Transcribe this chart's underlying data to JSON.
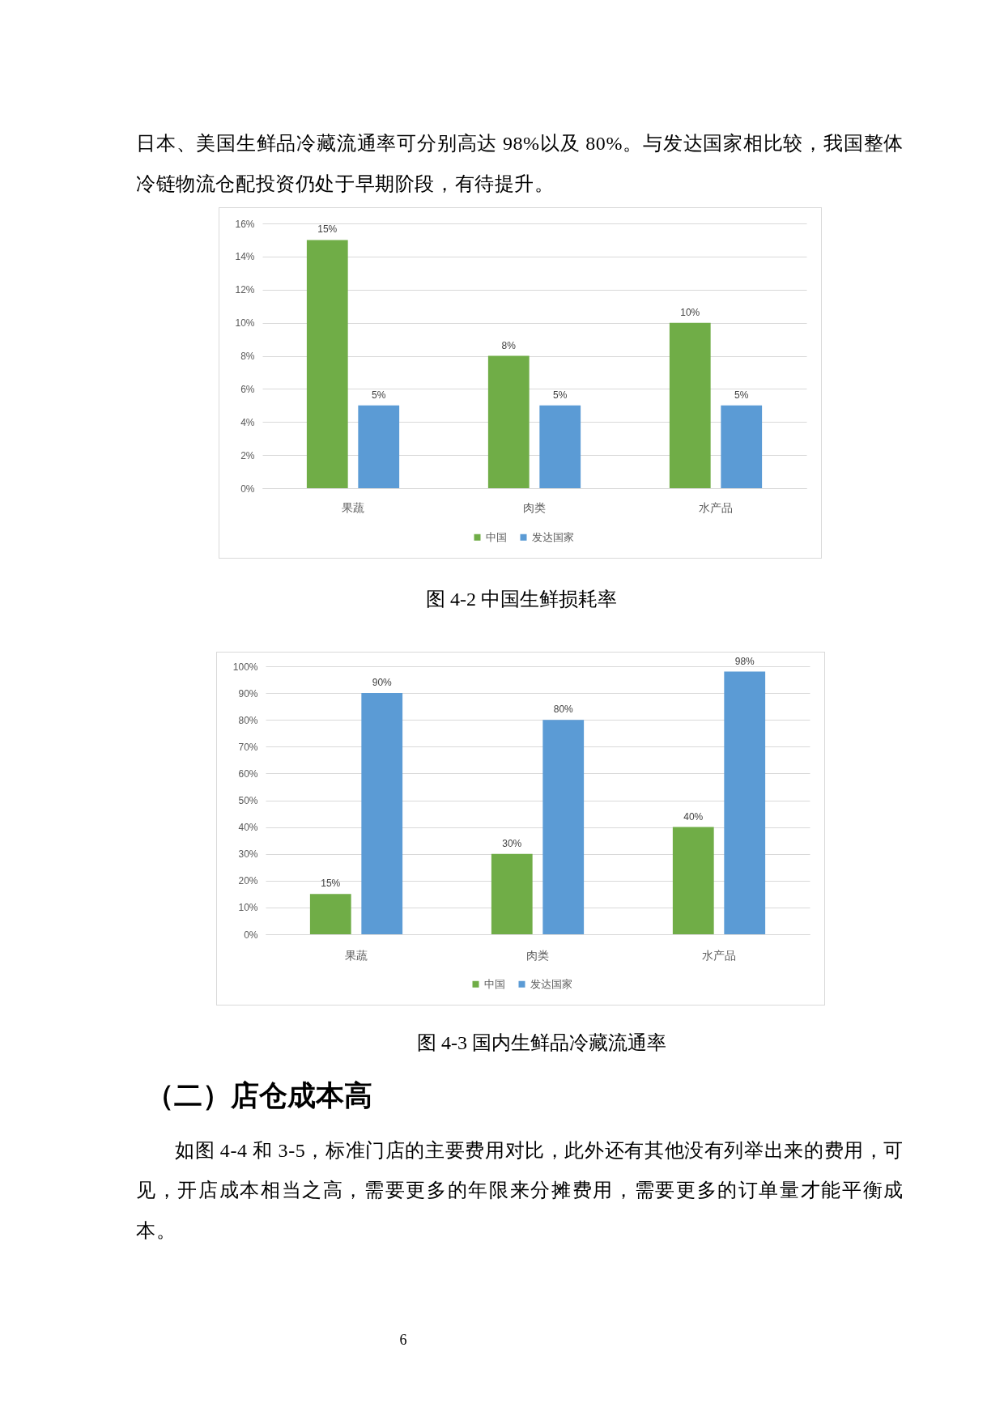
{
  "chart_data": [
    {
      "type": "bar",
      "categories": [
        "果蔬",
        "肉类",
        "水产品"
      ],
      "series": [
        {
          "name": "中国",
          "color": "#70ad47",
          "values": [
            15,
            8,
            10
          ],
          "value_labels": [
            "15%",
            "8%",
            "10%"
          ]
        },
        {
          "name": "发达国家",
          "color": "#5b9bd5",
          "values": [
            5,
            5,
            5
          ],
          "value_labels": [
            "5%",
            "5%",
            "5%"
          ]
        }
      ],
      "ylim": [
        0,
        16
      ],
      "yticks": [
        {
          "value": 0,
          "label": "0%"
        },
        {
          "value": 2,
          "label": "2%"
        },
        {
          "value": 4,
          "label": "4%"
        },
        {
          "value": 6,
          "label": "6%"
        },
        {
          "value": 8,
          "label": "8%"
        },
        {
          "value": 10,
          "label": "10%"
        },
        {
          "value": 12,
          "label": "12%"
        },
        {
          "value": 14,
          "label": "14%"
        },
        {
          "value": 16,
          "label": "16%"
        }
      ],
      "grid": "y",
      "legend": "bottom",
      "annotations": [
        "日本、美国生鲜品冷藏流通率可分别高达 98%以及 80%。与发达国家相比较，我国整体冷链物流仓配投资仍处于早期阶段，有待提升。",
        "图 4-2 中国生鲜损耗率"
      ]
    },
    {
      "type": "bar",
      "categories": [
        "果蔬",
        "肉类",
        "水产品"
      ],
      "series": [
        {
          "name": "中国",
          "color": "#70ad47",
          "values": [
            15,
            30,
            40
          ],
          "value_labels": [
            "15%",
            "30%",
            "40%"
          ]
        },
        {
          "name": "发达国家",
          "color": "#5b9bd5",
          "values": [
            90,
            80,
            98
          ],
          "value_labels": [
            "90%",
            "80%",
            "98%"
          ]
        }
      ],
      "ylim": [
        0,
        100
      ],
      "yticks": [
        {
          "value": 0,
          "label": "0%"
        },
        {
          "value": 10,
          "label": "10%"
        },
        {
          "value": 20,
          "label": "20%"
        },
        {
          "value": 30,
          "label": "30%"
        },
        {
          "value": 40,
          "label": "40%"
        },
        {
          "value": 50,
          "label": "50%"
        },
        {
          "value": 60,
          "label": "60%"
        },
        {
          "value": 70,
          "label": "70%"
        },
        {
          "value": 80,
          "label": "80%"
        },
        {
          "value": 90,
          "label": "90%"
        },
        {
          "value": 100,
          "label": "100%"
        }
      ],
      "grid": "y",
      "legend": "bottom",
      "annotations": [
        "图 4-3 国内生鲜品冷藏流通率",
        "（二）店仓成本高",
        "如图 4-4 和 3-5，标准门店的主要费用对比，此外还有其他没有列举出来的费用，可见，开店成本相当之高，需要更多的年限来分摊费用，需要更多的订单量才能平衡成本。",
        "6"
      ]
    }
  ]
}
